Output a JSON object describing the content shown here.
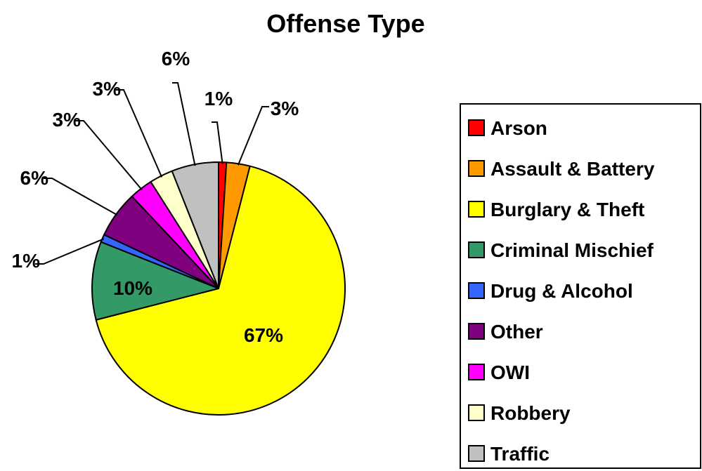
{
  "chart_data": {
    "type": "pie",
    "title": "Offense Type",
    "slices": [
      {
        "label": "Arson",
        "value": 1,
        "display": "1%",
        "color": "#ff0000"
      },
      {
        "label": "Assault & Battery",
        "value": 3,
        "display": "3%",
        "color": "#ff9900"
      },
      {
        "label": "Burglary & Theft",
        "value": 67,
        "display": "67%",
        "color": "#ffff00"
      },
      {
        "label": "Criminal Mischief",
        "value": 10,
        "display": "10%",
        "color": "#339966"
      },
      {
        "label": "Drug & Alcohol",
        "value": 1,
        "display": "1%",
        "color": "#3366ff"
      },
      {
        "label": "Other",
        "value": 6,
        "display": "6%",
        "color": "#800080"
      },
      {
        "label": "OWI",
        "value": 3,
        "display": "3%",
        "color": "#ff00ff"
      },
      {
        "label": "Robbery",
        "value": 3,
        "display": "3%",
        "color": "#ffffcc"
      },
      {
        "label": "Traffic",
        "value": 6,
        "display": "6%",
        "color": "#c0c0c0"
      }
    ],
    "legend_position": "right"
  }
}
